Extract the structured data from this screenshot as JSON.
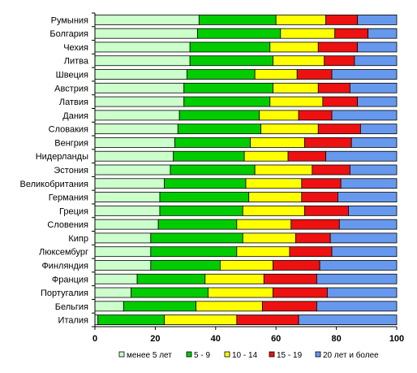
{
  "chart_data": {
    "type": "bar",
    "orientation": "horizontal",
    "stacked": true,
    "percent": true,
    "categories": [
      "Румыния",
      "Болгария",
      "Чехия",
      "Литва",
      "Швеция",
      "Австрия",
      "Латвия",
      "Дания",
      "Словакия",
      "Венгрия",
      "Нидерланды",
      "Эстония",
      "Великобритания",
      "Германия",
      "Греция",
      "Словения",
      "Кипр",
      "Люксембург",
      "Финляндия",
      "Франция",
      "Португалия",
      "Бельгия",
      "Италия"
    ],
    "series": [
      {
        "name": "менее 5 лет",
        "color": "#ccffcc",
        "values": [
          34.5,
          34,
          31.5,
          31.5,
          30.5,
          29.5,
          29.5,
          28,
          27.5,
          26.5,
          26,
          25,
          23,
          21.5,
          21.5,
          21,
          18.5,
          18.5,
          18.5,
          14,
          12,
          9.5,
          1
        ]
      },
      {
        "name": "5 - 9",
        "color": "#00cc00",
        "values": [
          25.5,
          27.5,
          26.5,
          27.5,
          22.5,
          29.5,
          28.5,
          26.5,
          27.5,
          25,
          23.5,
          28,
          27,
          29.5,
          27.5,
          26,
          30.5,
          28.5,
          23,
          22.5,
          25.5,
          24,
          22
        ]
      },
      {
        "name": "10 - 14",
        "color": "#ffff00",
        "values": [
          16.5,
          18,
          16,
          17,
          14,
          15,
          17.5,
          13,
          19,
          18,
          14.5,
          19,
          18.5,
          17.5,
          20.5,
          18,
          17.5,
          17.5,
          17.5,
          19.5,
          21.5,
          22,
          24
        ]
      },
      {
        "name": "15 - 19",
        "color": "#ee1111",
        "values": [
          10.5,
          11,
          13,
          10,
          11.5,
          10.5,
          11.5,
          11,
          14,
          15.5,
          12.5,
          12.5,
          13,
          12,
          14.5,
          16,
          11.5,
          14,
          15.5,
          17.5,
          18,
          18,
          20.5
        ]
      },
      {
        "name": "20 лет и более",
        "color": "#6699ee",
        "values": [
          13,
          9.5,
          13,
          14,
          21.5,
          15.5,
          13,
          21.5,
          12,
          15,
          23.5,
          15.5,
          18.5,
          19.5,
          16,
          19,
          22,
          21.5,
          25.5,
          26.5,
          23,
          26.5,
          32.5
        ]
      }
    ],
    "xlim": [
      0,
      100
    ],
    "xticks": [
      0,
      20,
      40,
      60,
      80,
      100
    ],
    "title": "",
    "xlabel": "",
    "ylabel": "",
    "grid": false,
    "legend": "bottom"
  }
}
